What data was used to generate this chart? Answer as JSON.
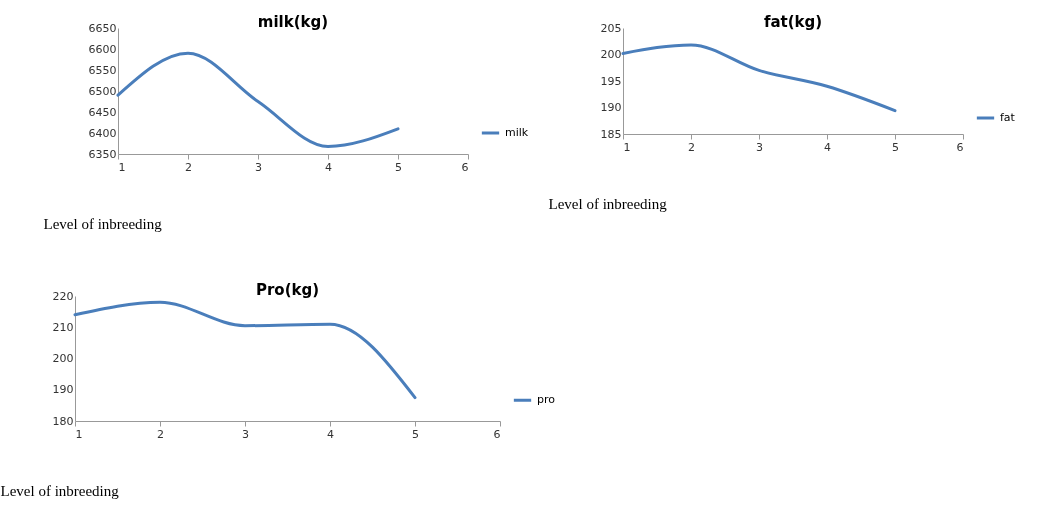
{
  "chart_data": [
    {
      "type": "line",
      "title": "milk(kg)",
      "xlabel": "Level of inbreeding",
      "x": [
        1,
        2,
        3,
        4,
        5
      ],
      "series": [
        {
          "name": "milk",
          "color": "#4a7ebb",
          "values": [
            6490,
            6590,
            6475,
            6368,
            6410
          ]
        }
      ],
      "xlim": [
        1,
        6
      ],
      "xticks": [
        1,
        2,
        3,
        4,
        5,
        6
      ],
      "ylim": [
        6350,
        6650
      ],
      "yticks": [
        6350,
        6400,
        6450,
        6500,
        6550,
        6600,
        6650
      ],
      "grid": false,
      "legend": "right"
    },
    {
      "type": "line",
      "title": "fat(kg)",
      "xlabel": "Level of inbreeding",
      "x": [
        1,
        2,
        3,
        4,
        5
      ],
      "series": [
        {
          "name": "fat",
          "color": "#4a7ebb",
          "values": [
            200.2,
            201.8,
            197,
            194,
            189.4
          ]
        }
      ],
      "xlim": [
        1,
        6
      ],
      "xticks": [
        1,
        2,
        3,
        4,
        5,
        6
      ],
      "ylim": [
        185,
        205
      ],
      "yticks": [
        185,
        190,
        195,
        200,
        205
      ],
      "grid": false,
      "legend": "right"
    },
    {
      "type": "line",
      "title": "Pro(kg)",
      "xlabel": "Level of inbreeding",
      "x": [
        1,
        2,
        3,
        4,
        5
      ],
      "series": [
        {
          "name": "pro",
          "color": "#4a7ebb",
          "values": [
            214,
            218,
            210.5,
            211,
            187.5
          ]
        }
      ],
      "xlim": [
        1,
        6
      ],
      "xticks": [
        1,
        2,
        3,
        4,
        5,
        6
      ],
      "ylim": [
        180,
        220
      ],
      "yticks": [
        180,
        190,
        200,
        210,
        220
      ],
      "grid": false,
      "legend": "right"
    }
  ]
}
